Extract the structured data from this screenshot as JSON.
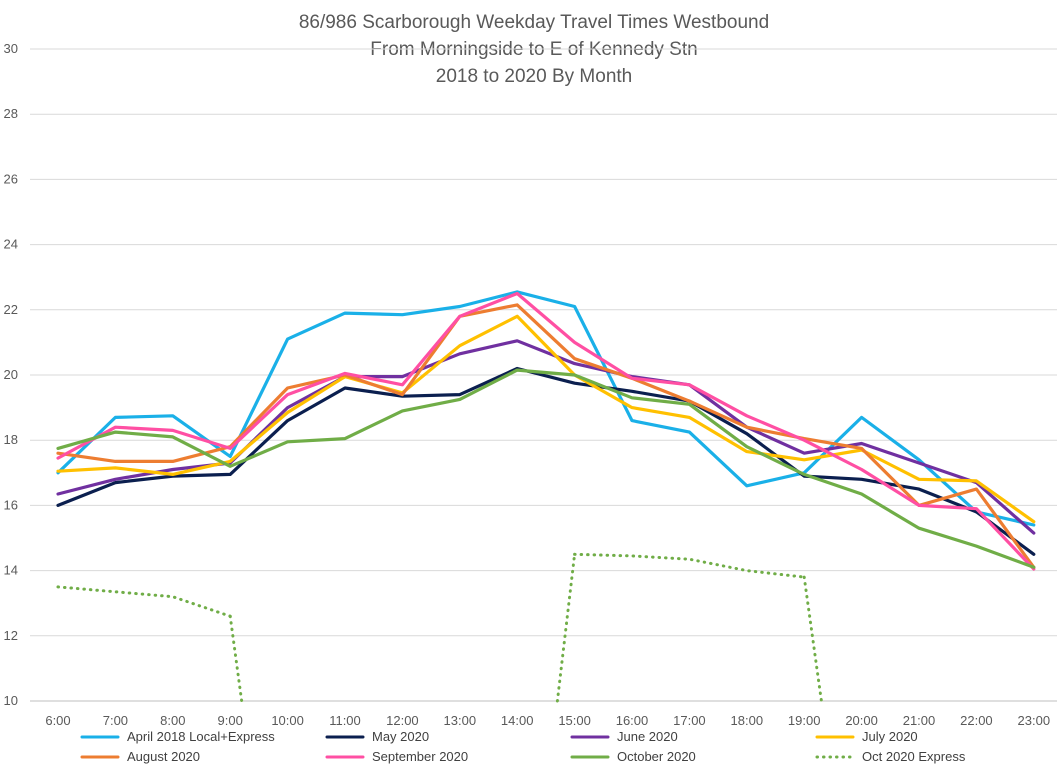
{
  "chart_data": {
    "type": "line",
    "title_lines": [
      "86/986 Scarborough Weekday Travel Times Westbound",
      "From Morningside to E of Kennedy Stn",
      "2018 to 2020 By Month"
    ],
    "categories": [
      "6:00",
      "7:00",
      "8:00",
      "9:00",
      "10:00",
      "11:00",
      "12:00",
      "13:00",
      "14:00",
      "15:00",
      "16:00",
      "17:00",
      "18:00",
      "19:00",
      "20:00",
      "21:00",
      "22:00",
      "23:00"
    ],
    "y_ticks": [
      "10",
      "12",
      "14",
      "16",
      "18",
      "20",
      "22",
      "24",
      "26",
      "28",
      "30"
    ],
    "ylim": [
      10,
      30
    ],
    "grid": "horizontal",
    "legend_position": "bottom",
    "series": [
      {
        "name": "April 2018 Local+Express",
        "color": "#1ab0e8",
        "dash": "solid",
        "values": [
          17.0,
          18.7,
          18.75,
          17.5,
          21.1,
          21.9,
          21.85,
          22.1,
          22.55,
          22.1,
          18.6,
          18.25,
          16.6,
          17.0,
          18.7,
          17.4,
          15.8,
          15.4
        ]
      },
      {
        "name": "May 2020",
        "color": "#0b1f4f",
        "dash": "solid",
        "values": [
          16.0,
          16.7,
          16.9,
          16.95,
          18.6,
          19.6,
          19.35,
          19.4,
          20.2,
          19.75,
          19.5,
          19.2,
          18.2,
          16.9,
          16.8,
          16.5,
          15.8,
          14.5
        ]
      },
      {
        "name": "June 2020",
        "color": "#7030a0",
        "dash": "solid",
        "values": [
          16.35,
          16.8,
          17.1,
          17.3,
          19.0,
          19.95,
          19.95,
          20.65,
          21.05,
          20.35,
          19.95,
          19.7,
          18.4,
          17.6,
          17.9,
          17.3,
          16.7,
          15.15
        ]
      },
      {
        "name": "July 2020",
        "color": "#ffc000",
        "dash": "solid",
        "values": [
          17.05,
          17.15,
          16.95,
          17.35,
          18.85,
          19.95,
          19.45,
          20.9,
          21.8,
          20.0,
          19.0,
          18.7,
          17.65,
          17.4,
          17.7,
          16.8,
          16.75,
          15.5
        ]
      },
      {
        "name": "August 2020",
        "color": "#ed7d31",
        "dash": "solid",
        "values": [
          17.6,
          17.35,
          17.35,
          17.8,
          19.6,
          20.0,
          19.4,
          21.8,
          22.15,
          20.5,
          19.9,
          19.2,
          18.4,
          18.05,
          17.75,
          16.0,
          16.5,
          14.1
        ]
      },
      {
        "name": "September 2020",
        "color": "#ff4fa3",
        "dash": "solid",
        "values": [
          17.45,
          18.4,
          18.3,
          17.75,
          19.4,
          20.05,
          19.7,
          21.8,
          22.5,
          21.0,
          19.9,
          19.7,
          18.75,
          18.0,
          17.1,
          16.0,
          15.9,
          14.05
        ]
      },
      {
        "name": "October 2020",
        "color": "#70ad47",
        "dash": "solid",
        "values": [
          17.75,
          18.25,
          18.1,
          17.2,
          17.95,
          18.05,
          18.9,
          19.25,
          20.15,
          20.0,
          19.3,
          19.1,
          17.8,
          16.95,
          16.35,
          15.3,
          14.75,
          14.1
        ]
      },
      {
        "name": "Oct 2020 Express",
        "color": "#70ad47",
        "dash": "dotted",
        "values": [
          13.5,
          13.35,
          13.2,
          12.6,
          null,
          null,
          null,
          null,
          null,
          14.5,
          14.45,
          14.35,
          14.0,
          13.8,
          null,
          null,
          null,
          null
        ],
        "drop_segments": [
          [
            3,
            3.2
          ],
          [
            8.7,
            9
          ],
          [
            13,
            13.3
          ]
        ]
      }
    ]
  }
}
